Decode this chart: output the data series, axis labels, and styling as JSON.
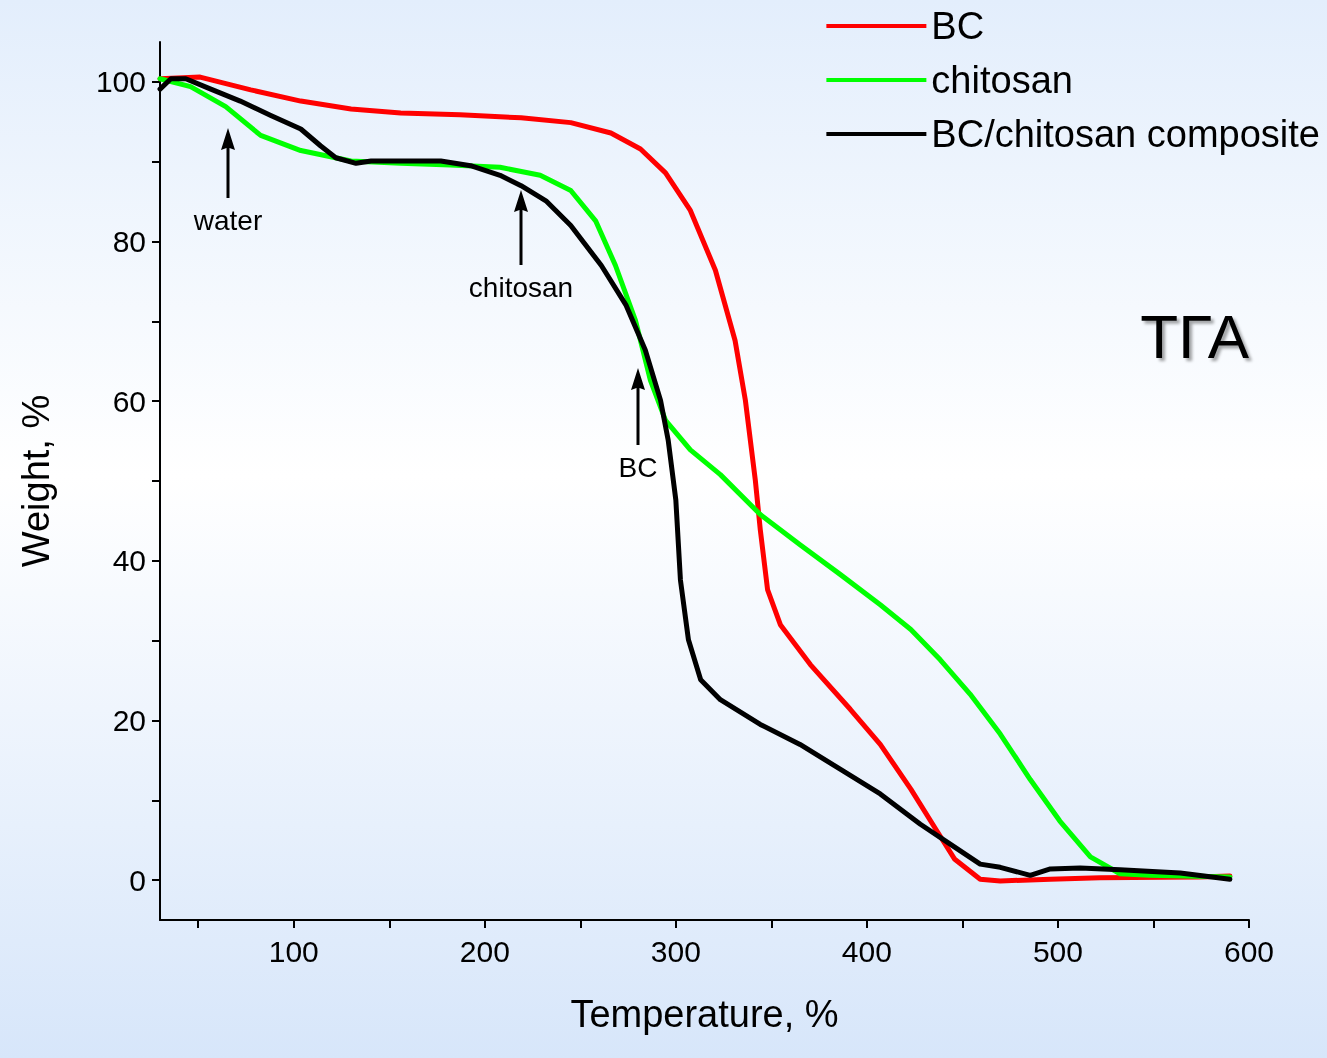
{
  "chart_data": {
    "type": "line",
    "xlabel": "Temperature, %",
    "ylabel": "Weight, %",
    "xlim": [
      30,
      600
    ],
    "ylim": [
      -5,
      105
    ],
    "xticks": [
      {
        "value": 50,
        "label": null
      },
      100,
      {
        "value": 150,
        "label": null
      },
      200,
      {
        "value": 250,
        "label": null
      },
      300,
      {
        "value": 350,
        "label": null
      },
      400,
      {
        "value": 450,
        "label": null
      },
      500,
      {
        "value": 550,
        "label": null
      },
      600
    ],
    "yticks": [
      0,
      {
        "value": 10,
        "label": null
      },
      20,
      {
        "value": 30,
        "label": null
      },
      40,
      {
        "value": 50,
        "label": null
      },
      60,
      {
        "value": 70,
        "label": null
      },
      80,
      {
        "value": 90,
        "label": null
      },
      100
    ],
    "grid": false,
    "legend": "top right",
    "marker": "none",
    "line_style": "solid",
    "annotations": [
      "water",
      "chitosan",
      "BC",
      "ТГА"
    ],
    "series": [
      {
        "name": "BC",
        "color": "#ff0000",
        "x": [
          30,
          51,
          77.5,
          103.7,
          130,
          156,
          187,
          219,
          245,
          266,
          281.5,
          294.6,
          307.6,
          320.7,
          331,
          336.4,
          341.6,
          344.2,
          348,
          354.7,
          370.4,
          391.3,
          407,
          423,
          436,
          446,
          459.3,
          469.8,
          496,
          522,
          574,
          590
        ],
        "values": [
          100.4,
          100.6,
          99,
          97.6,
          96.6,
          96.1,
          95.9,
          95.5,
          94.9,
          93.6,
          91.6,
          88.6,
          83.9,
          76.4,
          67.6,
          60.1,
          50.1,
          43.9,
          36.4,
          32,
          27,
          21.4,
          17,
          11.4,
          6.4,
          2.6,
          0.1,
          -0.1,
          0.1,
          0.3,
          0.4,
          0.5
        ]
      },
      {
        "name": "chitosan",
        "color": "#00ff00",
        "x": [
          30,
          46,
          64.4,
          82.7,
          103.7,
          130,
          156,
          182,
          208,
          229,
          245,
          258,
          268.4,
          278.9,
          286.7,
          294.6,
          307.6,
          323.3,
          344.2,
          365,
          386,
          407,
          423,
          438.4,
          454,
          469.8,
          485.5,
          501,
          517,
          532.5,
          548,
          590
        ],
        "values": [
          100.4,
          99.4,
          96.9,
          93.3,
          91.4,
          90.1,
          89.8,
          89.6,
          89.3,
          88.3,
          86.4,
          82.6,
          77,
          70.1,
          62.6,
          57.6,
          53.9,
          50.8,
          45.8,
          42,
          38.3,
          34.5,
          31.4,
          27.6,
          23.3,
          18.3,
          12.6,
          7.4,
          2.9,
          0.8,
          0.6,
          0.4
        ]
      },
      {
        "name": "BC/chitosan composite",
        "color": "#000000",
        "x": [
          30,
          35.7,
          43.5,
          56.6,
          72,
          88,
          103.7,
          114,
          122,
          132.6,
          140.5,
          156,
          177,
          192.6,
          208,
          219,
          232,
          245,
          261,
          274,
          284,
          292,
          296,
          300,
          302.4,
          306.6,
          313,
          323.3,
          344.2,
          365,
          386,
          407,
          428,
          443.6,
          459.3,
          469.8,
          485.5,
          496,
          511.6,
          532.5,
          564,
          590
        ],
        "values": [
          99.1,
          100.4,
          100.4,
          99.1,
          97.6,
          95.8,
          94.1,
          92,
          90.5,
          89.8,
          90.1,
          90.1,
          90.1,
          89.5,
          88.3,
          87,
          85.1,
          82,
          77,
          72,
          66.4,
          60.1,
          55.1,
          47.6,
          37.6,
          30.1,
          25.1,
          22.6,
          19.5,
          17,
          13.9,
          10.8,
          7,
          4.5,
          2,
          1.6,
          0.6,
          1.4,
          1.5,
          1.3,
          0.9,
          0.1
        ]
      }
    ]
  }
}
